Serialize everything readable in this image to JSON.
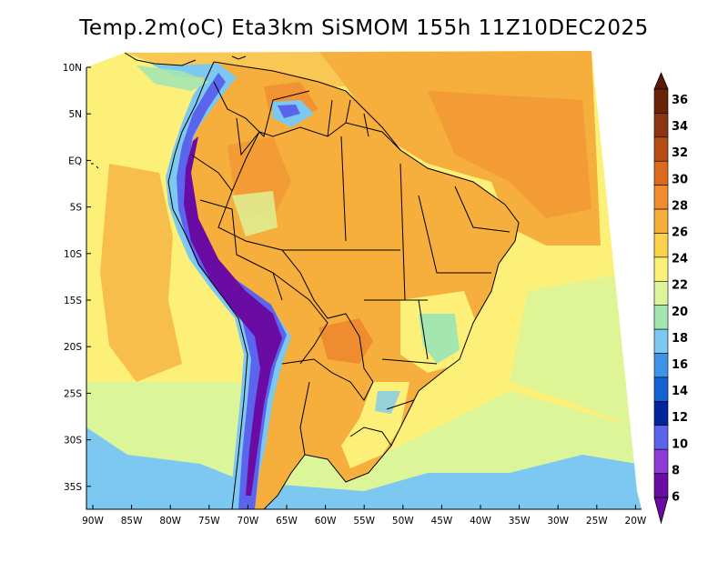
{
  "title": "Temp.2m(oC) Eta3km SiSMOM 155h 11Z10DEC2025",
  "variable": "Temp.2m(oC)",
  "model": "Eta3km SiSMOM",
  "forecast_hour": "155h",
  "valid_time": "11Z10DEC2025",
  "x_axis_labels": [
    "90W",
    "85W",
    "80W",
    "75W",
    "70W",
    "65W",
    "60W",
    "55W",
    "50W",
    "45W",
    "40W",
    "35W",
    "30W",
    "25W",
    "20W"
  ],
  "y_axis_labels": [
    "10N",
    "5N",
    "EQ",
    "5S",
    "10S",
    "15S",
    "20S",
    "25S",
    "30S",
    "35S"
  ],
  "colorbar": {
    "labels": [
      "36",
      "34",
      "32",
      "30",
      "28",
      "26",
      "24",
      "22",
      "20",
      "18",
      "16",
      "14",
      "12",
      "10",
      "8",
      "6"
    ],
    "colors": [
      "#6a2208",
      "#8c3510",
      "#b44c14",
      "#dc6a1e",
      "#f08c30",
      "#f6ae3c",
      "#fbd24c",
      "#fcf078",
      "#dcf598",
      "#a4e6b0",
      "#7cc8f0",
      "#3c94e6",
      "#1262d4",
      "#00249c",
      "#5a64ec",
      "#8c3cd4",
      "#6a0ca4"
    ],
    "top_arrow_color": "#5a1a06",
    "bottom_arrow_color": "#6a0ca4"
  },
  "palette": {
    "ocean_north": "#f6ae3c",
    "ocean_warm": "#f08c30",
    "ocean_cool": "#fcf078",
    "ocean_cold": "#dcf598",
    "ocean_colder": "#7cc8f0",
    "land_warm": "#f6ae3c",
    "land_hot": "#f08c30",
    "andes_cold": "#7cc8f0",
    "andes_core": "#5a64ec",
    "andes_peak": "#6a0ca4",
    "border": "#000000"
  }
}
